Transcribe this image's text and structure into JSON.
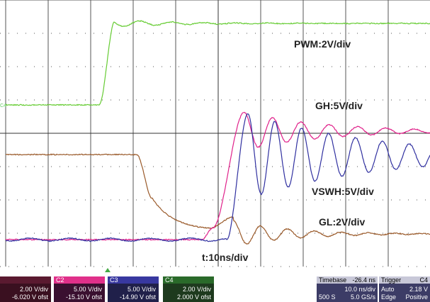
{
  "trace_labels": {
    "pwm": "PWM:2V/div",
    "gh": "GH:5V/div",
    "vswh": "VSWH:5V/div",
    "gl": "GL:2V/div",
    "time": "t:10ns/div"
  },
  "channel_marker": "C4",
  "panels": {
    "c1": {
      "scale": "2.00 V/div",
      "offset": "-6.020 V ofst"
    },
    "c2": {
      "name": "C2",
      "scale": "5.00 V/div",
      "offset": "-15.10 V ofst"
    },
    "c3": {
      "name": "C3",
      "scale": "5.00 V/div",
      "offset": "-14.90 V ofst"
    },
    "c4": {
      "name": "C4",
      "scale": "2.00 V/div",
      "offset": "2.000 V ofst"
    },
    "timebase": {
      "title": "Timebase",
      "delay": "-26.4 ns",
      "scale": "10.0 ns/div",
      "samples": "500 S",
      "rate": "5.0 GS/s"
    },
    "trigger": {
      "title": "Trigger",
      "source": "C4",
      "mode": "Auto",
      "level": "2.18 V",
      "type": "Edge",
      "slope": "Positive"
    }
  }
}
